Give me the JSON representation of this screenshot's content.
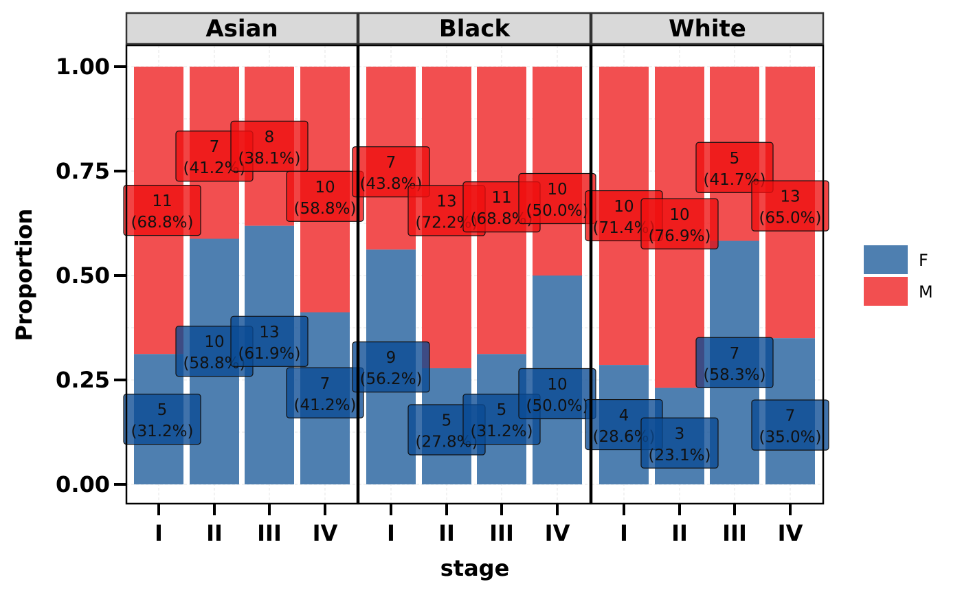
{
  "chart_data": {
    "type": "bar",
    "stacked": "fill",
    "facet_by": "race",
    "facets": [
      "Asian",
      "Black",
      "White"
    ],
    "categories": [
      "I",
      "II",
      "III",
      "IV"
    ],
    "xlabel": "stage",
    "ylabel": "Proportion",
    "ylim": [
      0,
      1
    ],
    "yticks": [
      "0.00",
      "0.25",
      "0.50",
      "0.75",
      "1.00"
    ],
    "ytick_values": [
      0,
      0.25,
      0.5,
      0.75,
      1.0
    ],
    "legend": {
      "position": "right",
      "entries": [
        {
          "name": "F",
          "color": "#4e7fb0"
        },
        {
          "name": "M",
          "color": "#f24f50"
        }
      ]
    },
    "label_fill": {
      "F": "#0a4a93",
      "M": "#ee0f10"
    },
    "panels": [
      {
        "facet": "Asian",
        "series": [
          {
            "name": "F",
            "counts": [
              5,
              10,
              13,
              7
            ],
            "percent_labels": [
              "(31.2%)",
              "(58.8%)",
              "(61.9%)",
              "(41.2%)"
            ],
            "values": [
              0.312,
              0.588,
              0.619,
              0.412
            ]
          },
          {
            "name": "M",
            "counts": [
              11,
              7,
              8,
              10
            ],
            "percent_labels": [
              "(68.8%)",
              "(41.2%)",
              "(38.1%)",
              "(58.8%)"
            ],
            "values": [
              0.688,
              0.412,
              0.381,
              0.588
            ]
          }
        ]
      },
      {
        "facet": "Black",
        "series": [
          {
            "name": "F",
            "counts": [
              9,
              5,
              5,
              10
            ],
            "percent_labels": [
              "(56.2%)",
              "(27.8%)",
              "(31.2%)",
              "(50.0%)"
            ],
            "values": [
              0.562,
              0.278,
              0.312,
              0.5
            ]
          },
          {
            "name": "M",
            "counts": [
              7,
              13,
              11,
              10
            ],
            "percent_labels": [
              "(43.8%)",
              "(72.2%)",
              "(68.8%)",
              "(50.0%)"
            ],
            "values": [
              0.438,
              0.722,
              0.688,
              0.5
            ]
          }
        ]
      },
      {
        "facet": "White",
        "series": [
          {
            "name": "F",
            "counts": [
              4,
              3,
              7,
              7
            ],
            "percent_labels": [
              "(28.6%)",
              "(23.1%)",
              "(58.3%)",
              "(35.0%)"
            ],
            "values": [
              0.286,
              0.231,
              0.583,
              0.35
            ]
          },
          {
            "name": "M",
            "counts": [
              10,
              10,
              5,
              13
            ],
            "percent_labels": [
              "(71.4%)",
              "(76.9%)",
              "(41.7%)",
              "(65.0%)"
            ],
            "values": [
              0.714,
              0.769,
              0.417,
              0.65
            ]
          }
        ]
      }
    ]
  }
}
